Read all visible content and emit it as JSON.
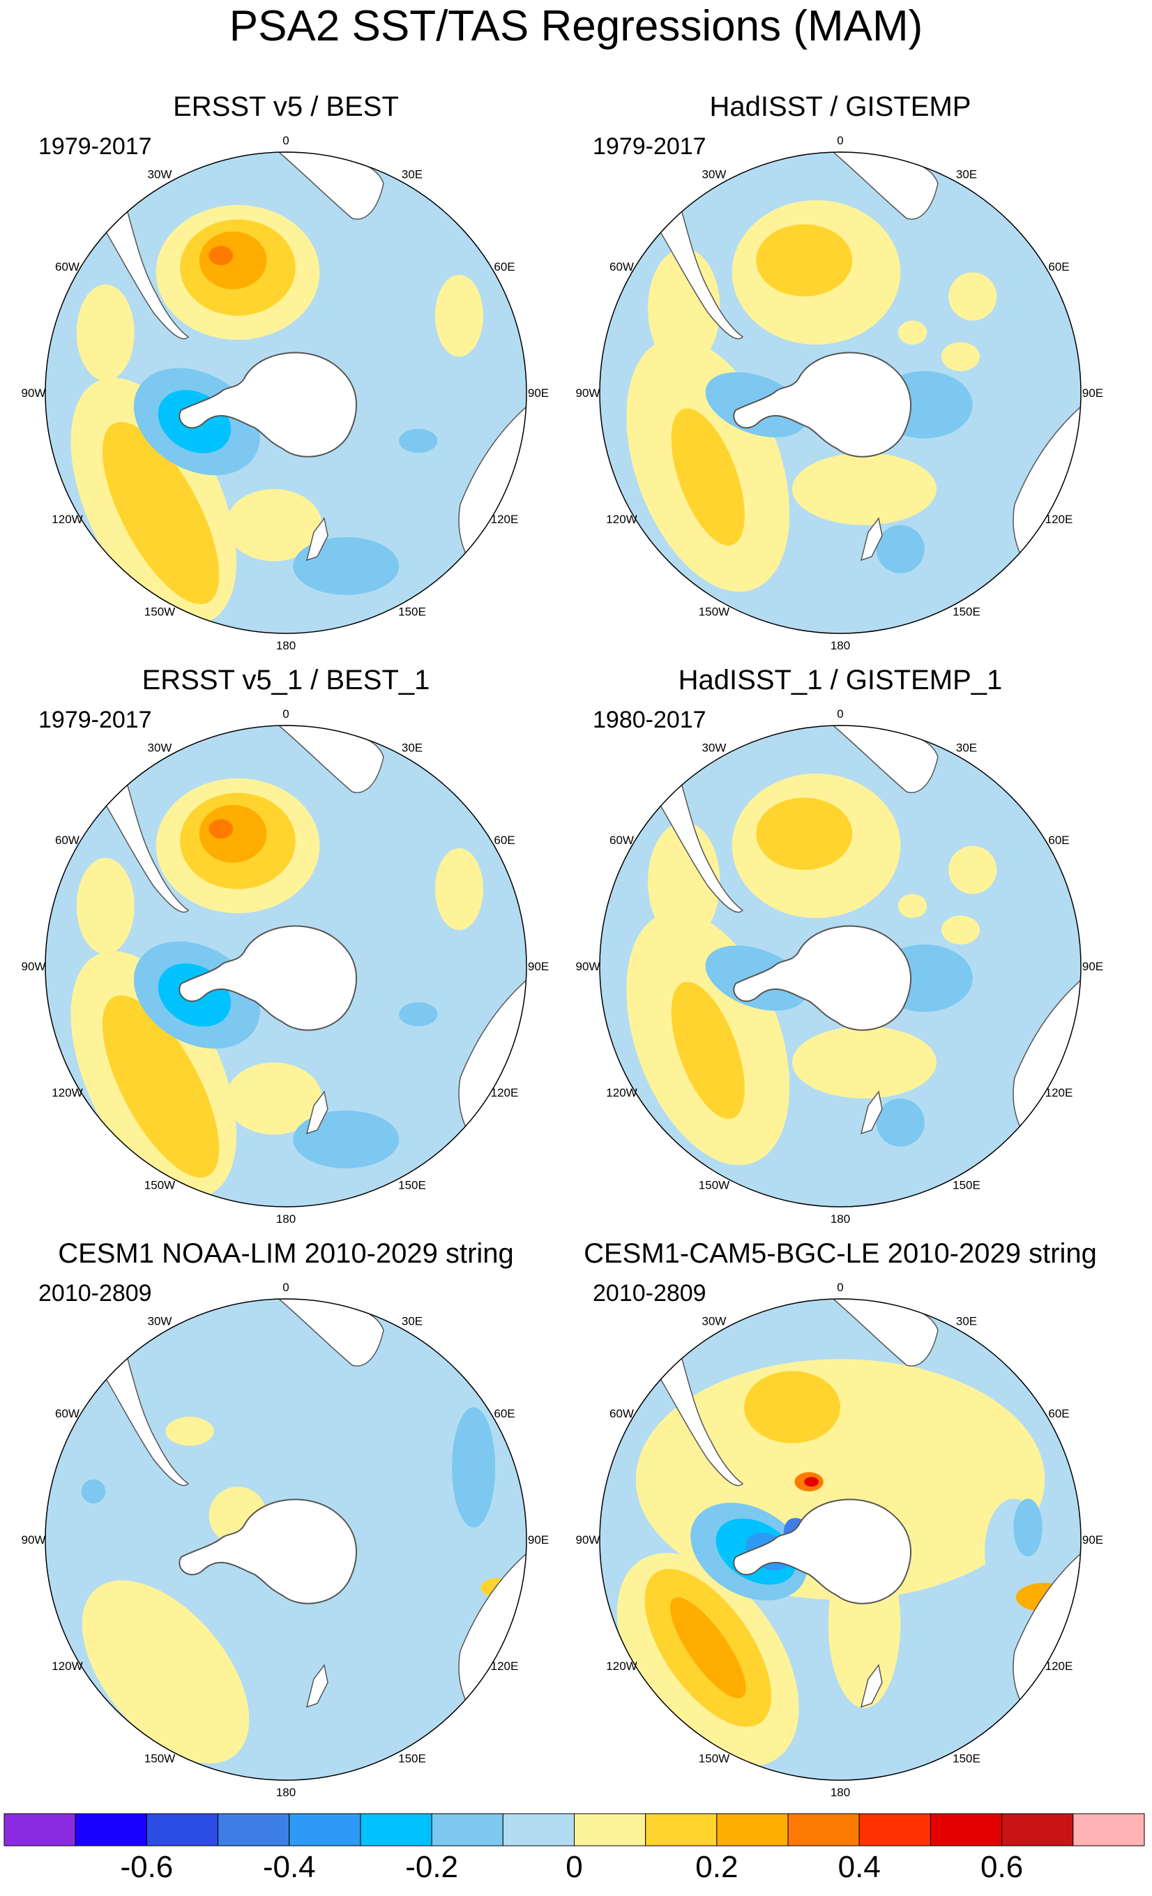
{
  "title": "PSA2 SST/TAS Regressions (MAM)",
  "colors": {
    "land": "#ffffff",
    "coast": "#555555",
    "levels": [
      "#8a2be2",
      "#1a00ff",
      "#2b4de6",
      "#3d7fe6",
      "#2d9bf5",
      "#00c2ff",
      "#7cc8f0",
      "#b3dcf2",
      "#fff39a",
      "#ffd42e",
      "#ffad00",
      "#ff7a00",
      "#ff3200",
      "#e50000",
      "#c81414",
      "#ffb3b3"
    ]
  },
  "colorbar": {
    "labels": [
      "-0.6",
      "-0.4",
      "-0.2",
      "0",
      "0.2",
      "0.4",
      "0.6"
    ]
  },
  "map_labels": [
    "0",
    "30E",
    "60E",
    "90E",
    "120E",
    "150E",
    "180",
    "150W",
    "120W",
    "90W",
    "60W",
    "30W"
  ],
  "panels": [
    {
      "title": "ERSST v5 / BEST",
      "years": "1979-2017",
      "pattern": "obs_smooth"
    },
    {
      "title": "HadISST / GISTEMP",
      "years": "1979-2017",
      "pattern": "obs_noisy"
    },
    {
      "title": "ERSST v5_1 / BEST_1",
      "years": "1979-2017",
      "pattern": "obs_smooth"
    },
    {
      "title": "HadISST_1 / GISTEMP_1",
      "years": "1980-2017",
      "pattern": "obs_noisy"
    },
    {
      "title": "CESM1 NOAA-LIM 2010-2029 string",
      "years": "2010-2809",
      "pattern": "lim"
    },
    {
      "title": "CESM1-CAM5-BGC-LE 2010-2029 string",
      "years": "2010-2809",
      "pattern": "model"
    }
  ]
}
